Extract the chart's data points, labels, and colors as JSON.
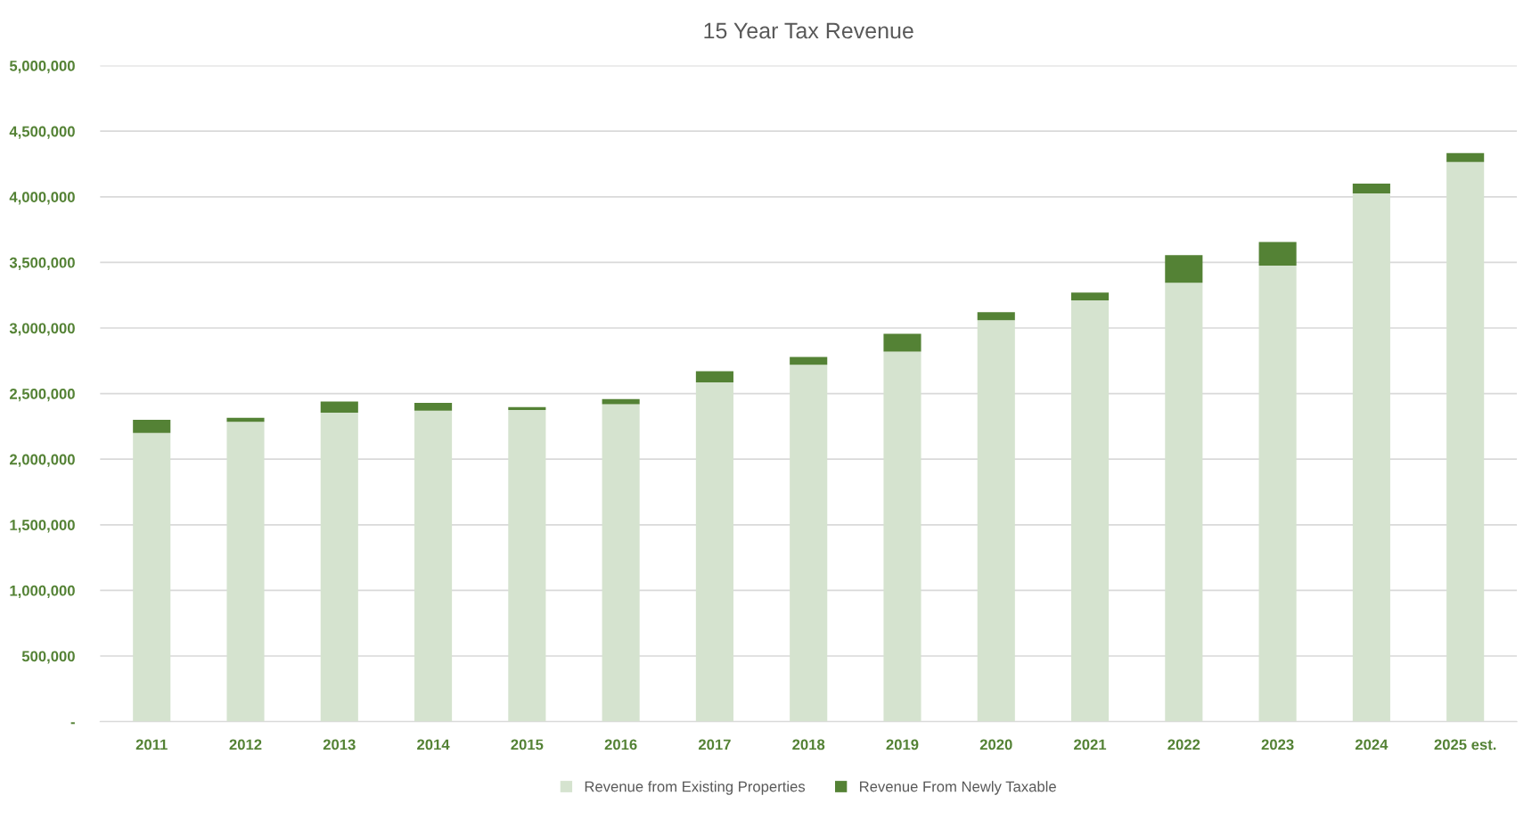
{
  "chart_data": {
    "type": "bar",
    "title": "15 Year Tax Revenue",
    "stacked": true,
    "categories": [
      "2011",
      "2012",
      "2013",
      "2014",
      "2015",
      "2016",
      "2017",
      "2018",
      "2019",
      "2020",
      "2021",
      "2022",
      "2023",
      "2024",
      "2025 est."
    ],
    "series": [
      {
        "name": "Revenue from Existing Properties",
        "color": "#d5e3cf",
        "values": [
          2200000,
          2285000,
          2355000,
          2370000,
          2375000,
          2420000,
          2585000,
          2720000,
          2820000,
          3060000,
          3210000,
          3345000,
          3475000,
          4025000,
          4265000
        ]
      },
      {
        "name": "Revenue From Newly Taxable",
        "color": "#548235",
        "values": [
          100000,
          30000,
          85000,
          60000,
          22000,
          38000,
          85000,
          60000,
          135000,
          60000,
          60000,
          210000,
          180000,
          75000,
          68000
        ]
      }
    ],
    "ylim": [
      0,
      5000000
    ],
    "yticks": [
      {
        "value": 0,
        "label": "-"
      },
      {
        "value": 500000,
        "label": "500,000"
      },
      {
        "value": 1000000,
        "label": "1,000,000"
      },
      {
        "value": 1500000,
        "label": "1,500,000"
      },
      {
        "value": 2000000,
        "label": "2,000,000"
      },
      {
        "value": 2500000,
        "label": "2,500,000"
      },
      {
        "value": 3000000,
        "label": "3,000,000"
      },
      {
        "value": 3500000,
        "label": "3,500,000"
      },
      {
        "value": 4000000,
        "label": "4,000,000"
      },
      {
        "value": 4500000,
        "label": "4,500,000"
      },
      {
        "value": 5000000,
        "label": "5,000,000"
      }
    ],
    "grid": "y",
    "legend": "bottom"
  }
}
